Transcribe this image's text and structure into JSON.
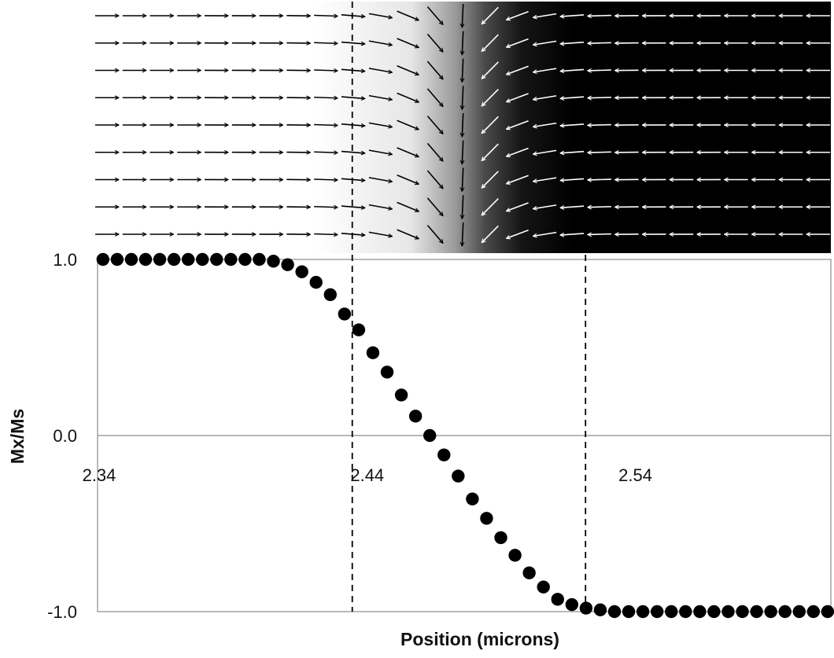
{
  "chart_data": {
    "type": "scatter",
    "xlabel": "Position (microns)",
    "ylabel": "Mx/Ms",
    "xlim": [
      2.34,
      2.6135
    ],
    "ylim": [
      -1.0,
      1.0
    ],
    "x_ticks": [
      "2.34",
      "2.44",
      "2.54"
    ],
    "y_ticks": [
      "1.0",
      "0.0",
      "-1.0"
    ],
    "grid": false,
    "legend": "none",
    "reference_lines": [
      {
        "axis": "x",
        "value": 2.435,
        "style": "dashed"
      },
      {
        "axis": "x",
        "value": 2.522,
        "style": "dashed"
      }
    ],
    "series": [
      {
        "x": [
          2.342,
          2.3473,
          2.3526,
          2.3579,
          2.3632,
          2.3685,
          2.3738,
          2.3791,
          2.3844,
          2.3897,
          2.395,
          2.4003,
          2.4056,
          2.4109,
          2.4162,
          2.4215,
          2.4268,
          2.4321,
          2.4374,
          2.4427,
          2.448,
          2.4533,
          2.4586,
          2.4639,
          2.4692,
          2.4745,
          2.4798,
          2.4851,
          2.4904,
          2.4957,
          2.501,
          2.5063,
          2.5116,
          2.5169,
          2.5222,
          2.5275,
          2.5328,
          2.5381,
          2.5434,
          2.5487,
          2.554,
          2.5593,
          2.5646,
          2.5699,
          2.5752,
          2.5805,
          2.5858,
          2.5911,
          2.5964,
          2.6017,
          2.607,
          2.6123
        ],
        "y": [
          1.0,
          1.0,
          1.0,
          1.0,
          1.0,
          1.0,
          1.0,
          1.0,
          1.0,
          1.0,
          1.0,
          1.0,
          0.99,
          0.97,
          0.93,
          0.87,
          0.8,
          0.69,
          0.6,
          0.47,
          0.36,
          0.23,
          0.11,
          0.0,
          -0.11,
          -0.23,
          -0.36,
          -0.47,
          -0.58,
          -0.68,
          -0.78,
          -0.86,
          -0.93,
          -0.96,
          -0.98,
          -0.99,
          -1.0,
          -1.0,
          -1.0,
          -1.0,
          -1.0,
          -1.0,
          -1.0,
          -1.0,
          -1.0,
          -1.0,
          -1.0,
          -1.0,
          -1.0,
          -1.0,
          -1.0,
          -1.0
        ]
      }
    ],
    "inset": {
      "type": "vector_field",
      "rows": 9,
      "columns": 27,
      "background": "white-to-black gradient",
      "colors": {
        "dark_arrow": "#000000",
        "light_arrow": "#ffffff"
      }
    }
  }
}
